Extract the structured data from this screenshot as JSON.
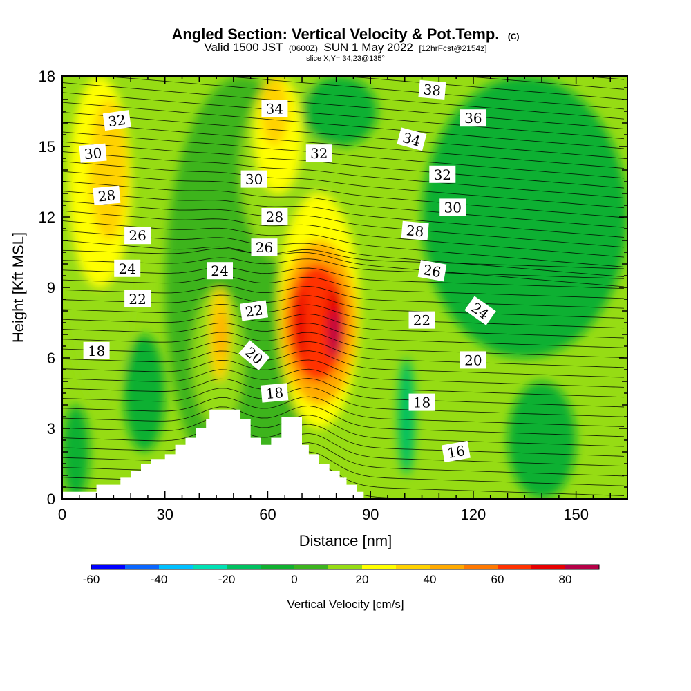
{
  "title": {
    "main": "Angled Section: Vertical Velocity & Pot.Temp.",
    "main_suffix": "(C)",
    "sub_prefix": "Valid 1500 JST",
    "sub_zulu": "(0600Z)",
    "sub_date": "SUN 1 May 2022",
    "sub_fcst": "[12hrFcst@2154z]",
    "slice": "slice X,Y= 34,23@135°"
  },
  "chart_data": {
    "type": "heatmap",
    "xlabel": "Distance [nm]",
    "ylabel": "Height [Kft MSL]",
    "xlim": [
      0,
      165
    ],
    "ylim": [
      0,
      18
    ],
    "xticks": [
      0,
      30,
      60,
      90,
      120,
      150
    ],
    "yticks": [
      0,
      3,
      6,
      9,
      12,
      15,
      18
    ],
    "colorbar": {
      "title": "Vertical Velocity [cm/s]",
      "levels": [
        -60,
        -50,
        -40,
        -30,
        -20,
        -10,
        0,
        10,
        20,
        30,
        40,
        50,
        60,
        70,
        80,
        90
      ],
      "colors": [
        "#0000ff",
        "#0a66ff",
        "#00c0ff",
        "#00e0b4",
        "#00c060",
        "#10b030",
        "#3cb41e",
        "#96dc14",
        "#ffff00",
        "#ffd200",
        "#ffaa00",
        "#ff7800",
        "#ff3200",
        "#e60000",
        "#b40046",
        "#6e008c"
      ],
      "tick_labels": [
        -60,
        -40,
        -20,
        0,
        20,
        40,
        60,
        80
      ]
    },
    "terrain_kft": [
      [
        0,
        0.3
      ],
      [
        10,
        0.3
      ],
      [
        10,
        0.6
      ],
      [
        17,
        0.6
      ],
      [
        17,
        0.9
      ],
      [
        20,
        0.9
      ],
      [
        20,
        1.2
      ],
      [
        23,
        1.2
      ],
      [
        23,
        1.5
      ],
      [
        26,
        1.5
      ],
      [
        26,
        1.7
      ],
      [
        30,
        1.7
      ],
      [
        30,
        1.9
      ],
      [
        33,
        1.9
      ],
      [
        33,
        2.3
      ],
      [
        36,
        2.3
      ],
      [
        36,
        2.6
      ],
      [
        39,
        2.6
      ],
      [
        39,
        3.0
      ],
      [
        42,
        3.0
      ],
      [
        42,
        3.4
      ],
      [
        43,
        3.4
      ],
      [
        43,
        3.8
      ],
      [
        52,
        3.8
      ],
      [
        52,
        3.4
      ],
      [
        55,
        3.4
      ],
      [
        55,
        2.6
      ],
      [
        58,
        2.6
      ],
      [
        58,
        2.3
      ],
      [
        61,
        2.3
      ],
      [
        61,
        2.6
      ],
      [
        64,
        2.6
      ],
      [
        64,
        3.5
      ],
      [
        70,
        3.5
      ],
      [
        70,
        2.3
      ],
      [
        72,
        2.3
      ],
      [
        72,
        1.9
      ],
      [
        75,
        1.9
      ],
      [
        75,
        1.5
      ],
      [
        78,
        1.5
      ],
      [
        78,
        1.2
      ],
      [
        81,
        1.2
      ],
      [
        81,
        0.9
      ],
      [
        83,
        0.9
      ],
      [
        83,
        0.6
      ],
      [
        86,
        0.6
      ],
      [
        86,
        0.3
      ],
      [
        88,
        0.3
      ],
      [
        88,
        0
      ],
      [
        165,
        0
      ],
      [
        165,
        0.3
      ]
    ],
    "velocity_regions": [
      {
        "value": 5,
        "x": [
          30,
          75
        ],
        "y": [
          0,
          18
        ]
      },
      {
        "value": 15,
        "x": [
          0,
          22
        ],
        "y": [
          4,
          18
        ]
      },
      {
        "value": 25,
        "x": [
          2,
          20
        ],
        "y": [
          9,
          18
        ]
      },
      {
        "value": 35,
        "x": [
          8,
          19
        ],
        "y": [
          11,
          17
        ]
      },
      {
        "value": 15,
        "x": [
          38,
          53
        ],
        "y": [
          3,
          9
        ]
      },
      {
        "value": 35,
        "x": [
          43,
          49
        ],
        "y": [
          5,
          9
        ]
      },
      {
        "value": 45,
        "x": [
          45,
          48
        ],
        "y": [
          6,
          8
        ]
      },
      {
        "value": 15,
        "x": [
          52,
          80
        ],
        "y": [
          10,
          18
        ]
      },
      {
        "value": 25,
        "x": [
          56,
          70
        ],
        "y": [
          13,
          18
        ]
      },
      {
        "value": 35,
        "x": [
          58,
          66
        ],
        "y": [
          15,
          18
        ]
      },
      {
        "value": 25,
        "x": [
          63,
          87
        ],
        "y": [
          3,
          13
        ]
      },
      {
        "value": 45,
        "x": [
          64,
          86
        ],
        "y": [
          4,
          11
        ]
      },
      {
        "value": 65,
        "x": [
          66,
          83
        ],
        "y": [
          5,
          10
        ]
      },
      {
        "value": 75,
        "x": [
          68,
          71
        ],
        "y": [
          6,
          9
        ]
      },
      {
        "value": 75,
        "x": [
          77,
          82
        ],
        "y": [
          6,
          9
        ]
      },
      {
        "value": 85,
        "x": [
          78,
          81
        ],
        "y": [
          6,
          8
        ]
      },
      {
        "value": -5,
        "x": [
          0,
          8
        ],
        "y": [
          0,
          4
        ]
      },
      {
        "value": -5,
        "x": [
          18,
          30
        ],
        "y": [
          2,
          7
        ]
      },
      {
        "value": -5,
        "x": [
          70,
          92
        ],
        "y": [
          15,
          18
        ]
      },
      {
        "value": -5,
        "x": [
          105,
          165
        ],
        "y": [
          6,
          18
        ]
      },
      {
        "value": -5,
        "x": [
          130,
          150
        ],
        "y": [
          0,
          5
        ]
      },
      {
        "value": -15,
        "x": [
          98,
          103
        ],
        "y": [
          1,
          6
        ]
      }
    ],
    "contour_labels": [
      {
        "text": "32",
        "x": 16,
        "y": 16.1,
        "rot": -8
      },
      {
        "text": "30",
        "x": 9,
        "y": 14.7,
        "rot": -5
      },
      {
        "text": "28",
        "x": 13,
        "y": 12.9,
        "rot": -5
      },
      {
        "text": "26",
        "x": 22,
        "y": 11.2,
        "rot": 0
      },
      {
        "text": "24",
        "x": 19,
        "y": 9.8,
        "rot": 0
      },
      {
        "text": "22",
        "x": 22,
        "y": 8.5,
        "rot": 0
      },
      {
        "text": "18",
        "x": 10,
        "y": 6.3,
        "rot": 0
      },
      {
        "text": "34",
        "x": 62,
        "y": 16.6,
        "rot": 0
      },
      {
        "text": "32",
        "x": 75,
        "y": 14.7,
        "rot": 0
      },
      {
        "text": "30",
        "x": 56,
        "y": 13.6,
        "rot": 0
      },
      {
        "text": "28",
        "x": 62,
        "y": 12.0,
        "rot": 0
      },
      {
        "text": "26",
        "x": 59,
        "y": 10.7,
        "rot": 0
      },
      {
        "text": "24",
        "x": 46,
        "y": 9.7,
        "rot": 0
      },
      {
        "text": "22",
        "x": 56,
        "y": 8.0,
        "rot": -8
      },
      {
        "text": "20",
        "x": 56,
        "y": 6.1,
        "rot": 40
      },
      {
        "text": "18",
        "x": 62,
        "y": 4.5,
        "rot": -5
      },
      {
        "text": "38",
        "x": 108,
        "y": 17.4,
        "rot": 5
      },
      {
        "text": "36",
        "x": 120,
        "y": 16.2,
        "rot": 0
      },
      {
        "text": "34",
        "x": 102,
        "y": 15.3,
        "rot": 15
      },
      {
        "text": "32",
        "x": 111,
        "y": 13.8,
        "rot": 0
      },
      {
        "text": "30",
        "x": 114,
        "y": 12.4,
        "rot": 0
      },
      {
        "text": "28",
        "x": 103,
        "y": 11.4,
        "rot": 5
      },
      {
        "text": "26",
        "x": 108,
        "y": 9.7,
        "rot": 10
      },
      {
        "text": "24",
        "x": 122,
        "y": 8.0,
        "rot": 35
      },
      {
        "text": "22",
        "x": 105,
        "y": 7.6,
        "rot": 0
      },
      {
        "text": "20",
        "x": 120,
        "y": 5.9,
        "rot": 0
      },
      {
        "text": "18",
        "x": 105,
        "y": 4.1,
        "rot": 0
      },
      {
        "text": "16",
        "x": 115,
        "y": 2.0,
        "rot": -10
      }
    ]
  }
}
